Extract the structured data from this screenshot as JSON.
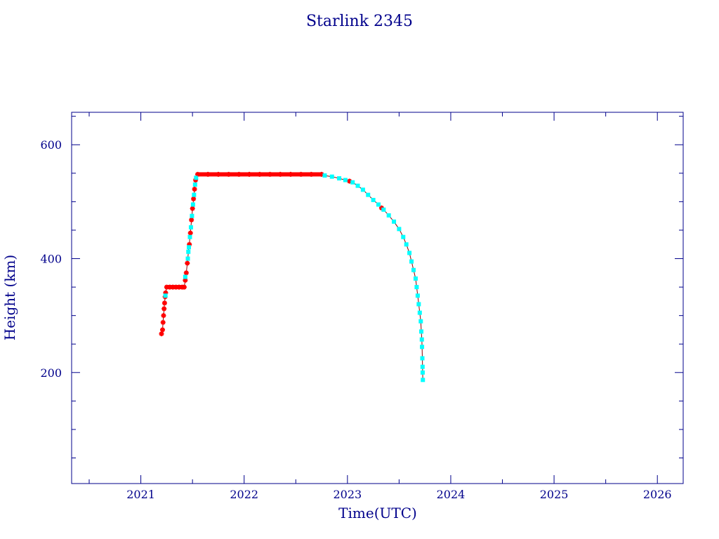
{
  "chart_data": {
    "type": "scatter",
    "title": "Starlink 2345",
    "xlabel": "Time(UTC)",
    "ylabel": "Height (km)",
    "xlim": [
      2020.33,
      2026.25
    ],
    "ylim": [
      5,
      657
    ],
    "x_ticks": [
      2021,
      2022,
      2023,
      2024,
      2025,
      2026
    ],
    "x_tick_labels": [
      "2021",
      "2022",
      "2023",
      "2024",
      "2025",
      "2026"
    ],
    "x_minor_step": 0.5,
    "y_ticks": [
      200,
      400,
      600
    ],
    "y_tick_labels": [
      "200",
      "400",
      "600"
    ],
    "y_minor_step": 50,
    "grid": false,
    "colors": {
      "axis": "#00008b",
      "series_a": "#ff0000",
      "series_b": "#00ffff",
      "line": "#8b0000"
    },
    "series": [
      {
        "color": "#ff0000",
        "marker": "star",
        "points": [
          [
            2021.2,
            268
          ],
          [
            2021.21,
            275
          ],
          [
            2021.215,
            288
          ],
          [
            2021.22,
            300
          ],
          [
            2021.225,
            312
          ],
          [
            2021.23,
            322
          ],
          [
            2021.235,
            333
          ],
          [
            2021.24,
            340
          ],
          [
            2021.25,
            350
          ],
          [
            2021.28,
            350
          ],
          [
            2021.31,
            350
          ],
          [
            2021.34,
            350
          ],
          [
            2021.37,
            350
          ],
          [
            2021.4,
            350
          ],
          [
            2021.42,
            350
          ],
          [
            2021.43,
            362
          ],
          [
            2021.44,
            375
          ],
          [
            2021.45,
            392
          ],
          [
            2021.47,
            425
          ],
          [
            2021.48,
            445
          ],
          [
            2021.49,
            468
          ],
          [
            2021.5,
            488
          ],
          [
            2021.51,
            505
          ],
          [
            2021.52,
            522
          ],
          [
            2021.53,
            538
          ],
          [
            2021.55,
            548
          ],
          [
            2021.65,
            548
          ],
          [
            2021.75,
            548
          ],
          [
            2021.85,
            548
          ],
          [
            2021.95,
            548
          ],
          [
            2022.05,
            548
          ],
          [
            2022.15,
            548
          ],
          [
            2022.25,
            548
          ],
          [
            2022.35,
            548
          ],
          [
            2022.45,
            548
          ],
          [
            2022.55,
            548
          ],
          [
            2022.65,
            548
          ],
          [
            2022.75,
            548
          ],
          [
            2023.02,
            536
          ],
          [
            2023.33,
            489
          ]
        ]
      },
      {
        "color": "#00ffff",
        "marker": "square",
        "points": [
          [
            2021.238,
            335
          ],
          [
            2021.43,
            368
          ],
          [
            2021.455,
            400
          ],
          [
            2021.46,
            412
          ],
          [
            2021.465,
            420
          ],
          [
            2021.475,
            438
          ],
          [
            2021.485,
            455
          ],
          [
            2021.495,
            475
          ],
          [
            2021.505,
            495
          ],
          [
            2021.515,
            512
          ],
          [
            2021.525,
            530
          ],
          [
            2021.535,
            542
          ],
          [
            2022.78,
            546
          ],
          [
            2022.85,
            544
          ],
          [
            2022.92,
            541
          ],
          [
            2022.98,
            538
          ],
          [
            2023.05,
            534
          ],
          [
            2023.1,
            528
          ],
          [
            2023.15,
            521
          ],
          [
            2023.2,
            512
          ],
          [
            2023.25,
            503
          ],
          [
            2023.3,
            495
          ],
          [
            2023.35,
            486
          ],
          [
            2023.4,
            476
          ],
          [
            2023.45,
            465
          ],
          [
            2023.5,
            452
          ],
          [
            2023.54,
            438
          ],
          [
            2023.57,
            425
          ],
          [
            2023.6,
            410
          ],
          [
            2023.62,
            395
          ],
          [
            2023.64,
            380
          ],
          [
            2023.66,
            365
          ],
          [
            2023.67,
            350
          ],
          [
            2023.68,
            335
          ],
          [
            2023.69,
            320
          ],
          [
            2023.7,
            305
          ],
          [
            2023.71,
            290
          ],
          [
            2023.715,
            272
          ],
          [
            2023.72,
            258
          ],
          [
            2023.722,
            245
          ],
          [
            2023.725,
            225
          ],
          [
            2023.727,
            210
          ],
          [
            2023.728,
            200
          ],
          [
            2023.73,
            187
          ]
        ]
      }
    ]
  }
}
